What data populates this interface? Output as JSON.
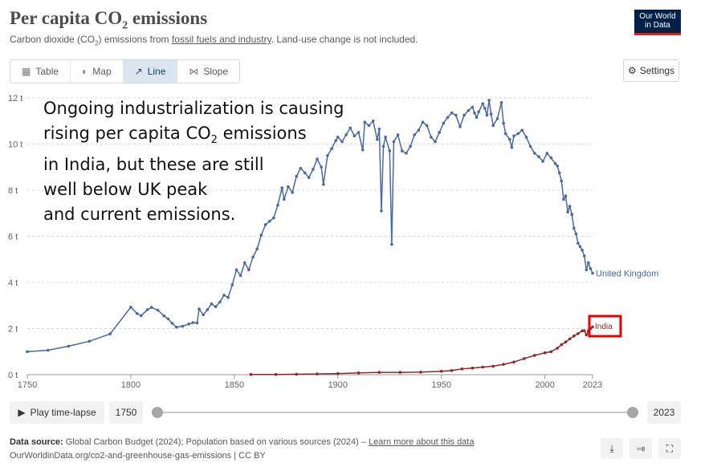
{
  "header": {
    "title": "Per capita CO",
    "title_sub": "2",
    "title_end": " emissions",
    "subtitle_a": "Carbon dioxide (CO",
    "subtitle_sub": "2",
    "subtitle_b": ") emissions from ",
    "subtitle_link": "fossil fuels and industry",
    "subtitle_c": ". Land-use change is not included.",
    "logo_line1": "Our World",
    "logo_line2": "in Data"
  },
  "tabs": [
    {
      "label": "Table",
      "icon": "table-icon"
    },
    {
      "label": "Map",
      "icon": "globe-icon"
    },
    {
      "label": "Line",
      "icon": "line-chart-icon"
    },
    {
      "label": "Slope",
      "icon": "slope-icon"
    }
  ],
  "settings_label": "Settings",
  "annotation": {
    "line1": "Ongoing industrialization is causing",
    "line2a": "rising per capita CO",
    "line2sub": "2",
    "line2b": " emissions",
    "line3": "in India, but these are still",
    "line4": "well below UK peak",
    "line5": "and current emissions."
  },
  "chart_data": {
    "type": "line",
    "title": "Per capita CO₂ emissions",
    "ylim": [
      0,
      12
    ],
    "xlim": [
      1750,
      2023
    ],
    "yticks": [
      "0 t",
      "2 t",
      "4 t",
      "6 t",
      "8 t",
      "10 t",
      "12 t"
    ],
    "ytick_values": [
      0,
      2,
      4,
      6,
      8,
      10,
      12
    ],
    "xticks": [
      "1750",
      "1800",
      "1850",
      "1900",
      "1950",
      "2000",
      "2023"
    ],
    "xtick_values": [
      1750,
      1800,
      1850,
      1900,
      1950,
      2000,
      2023
    ],
    "grid": true,
    "series": [
      {
        "name": "United Kingdom",
        "color": "#4c6a9c",
        "points": [
          [
            1750,
            1.0
          ],
          [
            1760,
            1.06
          ],
          [
            1770,
            1.24
          ],
          [
            1780,
            1.45
          ],
          [
            1790,
            1.77
          ],
          [
            1800,
            2.93
          ],
          [
            1803,
            2.65
          ],
          [
            1805,
            2.56
          ],
          [
            1808,
            2.82
          ],
          [
            1810,
            2.92
          ],
          [
            1813,
            2.8
          ],
          [
            1816,
            2.55
          ],
          [
            1818,
            2.42
          ],
          [
            1820,
            2.23
          ],
          [
            1822,
            2.06
          ],
          [
            1825,
            2.1
          ],
          [
            1828,
            2.2
          ],
          [
            1830,
            2.26
          ],
          [
            1832,
            2.24
          ],
          [
            1833,
            2.85
          ],
          [
            1835,
            2.6
          ],
          [
            1837,
            2.82
          ],
          [
            1839,
            3.07
          ],
          [
            1841,
            2.95
          ],
          [
            1843,
            3.15
          ],
          [
            1845,
            3.45
          ],
          [
            1847,
            3.35
          ],
          [
            1849,
            3.9
          ],
          [
            1851,
            4.55
          ],
          [
            1853,
            4.3
          ],
          [
            1855,
            4.85
          ],
          [
            1857,
            4.55
          ],
          [
            1859,
            5.1
          ],
          [
            1861,
            5.45
          ],
          [
            1863,
            6.05
          ],
          [
            1865,
            6.5
          ],
          [
            1867,
            6.65
          ],
          [
            1869,
            6.8
          ],
          [
            1871,
            7.35
          ],
          [
            1873,
            8.1
          ],
          [
            1874,
            7.6
          ],
          [
            1876,
            8.15
          ],
          [
            1878,
            7.9
          ],
          [
            1880,
            8.6
          ],
          [
            1882,
            8.95
          ],
          [
            1884,
            8.75
          ],
          [
            1886,
            8.55
          ],
          [
            1888,
            8.9
          ],
          [
            1890,
            9.35
          ],
          [
            1892,
            9.0
          ],
          [
            1893,
            8.25
          ],
          [
            1895,
            9.5
          ],
          [
            1897,
            9.8
          ],
          [
            1899,
            10.15
          ],
          [
            1900,
            10.3
          ],
          [
            1902,
            10.1
          ],
          [
            1904,
            10.4
          ],
          [
            1906,
            10.7
          ],
          [
            1908,
            10.35
          ],
          [
            1910,
            10.5
          ],
          [
            1912,
            9.75
          ],
          [
            1913,
            10.95
          ],
          [
            1915,
            10.8
          ],
          [
            1917,
            11.0
          ],
          [
            1919,
            10.2
          ],
          [
            1920,
            10.65
          ],
          [
            1921,
            7.1
          ],
          [
            1922,
            9.9
          ],
          [
            1923,
            10.3
          ],
          [
            1925,
            9.7
          ],
          [
            1926,
            5.65
          ],
          [
            1927,
            10.1
          ],
          [
            1929,
            10.4
          ],
          [
            1931,
            9.7
          ],
          [
            1933,
            9.6
          ],
          [
            1935,
            9.9
          ],
          [
            1937,
            10.4
          ],
          [
            1939,
            10.6
          ],
          [
            1941,
            10.95
          ],
          [
            1943,
            10.8
          ],
          [
            1945,
            10.3
          ],
          [
            1947,
            10.1
          ],
          [
            1949,
            10.5
          ],
          [
            1951,
            10.9
          ],
          [
            1953,
            11.15
          ],
          [
            1955,
            11.35
          ],
          [
            1957,
            11.25
          ],
          [
            1959,
            10.75
          ],
          [
            1961,
            11.25
          ],
          [
            1963,
            11.45
          ],
          [
            1965,
            11.6
          ],
          [
            1966,
            11.35
          ],
          [
            1967,
            11.15
          ],
          [
            1968,
            11.4
          ],
          [
            1970,
            11.75
          ],
          [
            1971,
            11.55
          ],
          [
            1972,
            11.25
          ],
          [
            1973,
            11.9
          ],
          [
            1974,
            11.3
          ],
          [
            1975,
            10.8
          ],
          [
            1977,
            11.1
          ],
          [
            1979,
            11.8
          ],
          [
            1980,
            10.9
          ],
          [
            1981,
            10.45
          ],
          [
            1983,
            10.2
          ],
          [
            1984,
            9.85
          ],
          [
            1985,
            10.35
          ],
          [
            1987,
            10.45
          ],
          [
            1989,
            10.6
          ],
          [
            1991,
            10.3
          ],
          [
            1993,
            9.9
          ],
          [
            1995,
            9.6
          ],
          [
            1997,
            9.45
          ],
          [
            1999,
            9.25
          ],
          [
            2001,
            9.6
          ],
          [
            2003,
            9.4
          ],
          [
            2005,
            9.15
          ],
          [
            2006,
            9.05
          ],
          [
            2007,
            8.75
          ],
          [
            2008,
            8.4
          ],
          [
            2009,
            7.6
          ],
          [
            2010,
            7.75
          ],
          [
            2011,
            7.05
          ],
          [
            2012,
            7.3
          ],
          [
            2013,
            6.95
          ],
          [
            2014,
            6.35
          ],
          [
            2015,
            6.1
          ],
          [
            2016,
            5.7
          ],
          [
            2017,
            5.55
          ],
          [
            2018,
            5.4
          ],
          [
            2019,
            5.15
          ],
          [
            2020,
            4.55
          ],
          [
            2021,
            4.85
          ],
          [
            2022,
            4.6
          ],
          [
            2023,
            4.4
          ]
        ]
      },
      {
        "name": "India",
        "color": "#8b2a2a",
        "points": [
          [
            1858,
            0.01
          ],
          [
            1870,
            0.01
          ],
          [
            1880,
            0.02
          ],
          [
            1890,
            0.03
          ],
          [
            1900,
            0.05
          ],
          [
            1910,
            0.08
          ],
          [
            1920,
            0.1
          ],
          [
            1930,
            0.1
          ],
          [
            1940,
            0.11
          ],
          [
            1950,
            0.15
          ],
          [
            1955,
            0.18
          ],
          [
            1960,
            0.25
          ],
          [
            1965,
            0.29
          ],
          [
            1970,
            0.33
          ],
          [
            1975,
            0.37
          ],
          [
            1980,
            0.45
          ],
          [
            1985,
            0.55
          ],
          [
            1990,
            0.7
          ],
          [
            1995,
            0.84
          ],
          [
            2000,
            0.95
          ],
          [
            2003,
            1.0
          ],
          [
            2006,
            1.15
          ],
          [
            2008,
            1.3
          ],
          [
            2010,
            1.42
          ],
          [
            2012,
            1.55
          ],
          [
            2014,
            1.68
          ],
          [
            2016,
            1.78
          ],
          [
            2018,
            1.9
          ],
          [
            2019,
            1.91
          ],
          [
            2020,
            1.73
          ],
          [
            2021,
            1.9
          ],
          [
            2022,
            2.0
          ],
          [
            2023,
            2.07
          ]
        ]
      }
    ]
  },
  "labels": {
    "uk": "United Kingdom",
    "india": "India"
  },
  "controls": {
    "play_label": "Play time-lapse",
    "start_year": "1750",
    "end_year": "2023"
  },
  "footer": {
    "source_label": "Data source:",
    "source_text": " Global Carbon Budget (2024); Population based on various sources (2024) – ",
    "source_link": "Learn more about this data",
    "url": "OurWorldinData.org/co2-and-greenhouse-gas-emissions | CC BY"
  }
}
